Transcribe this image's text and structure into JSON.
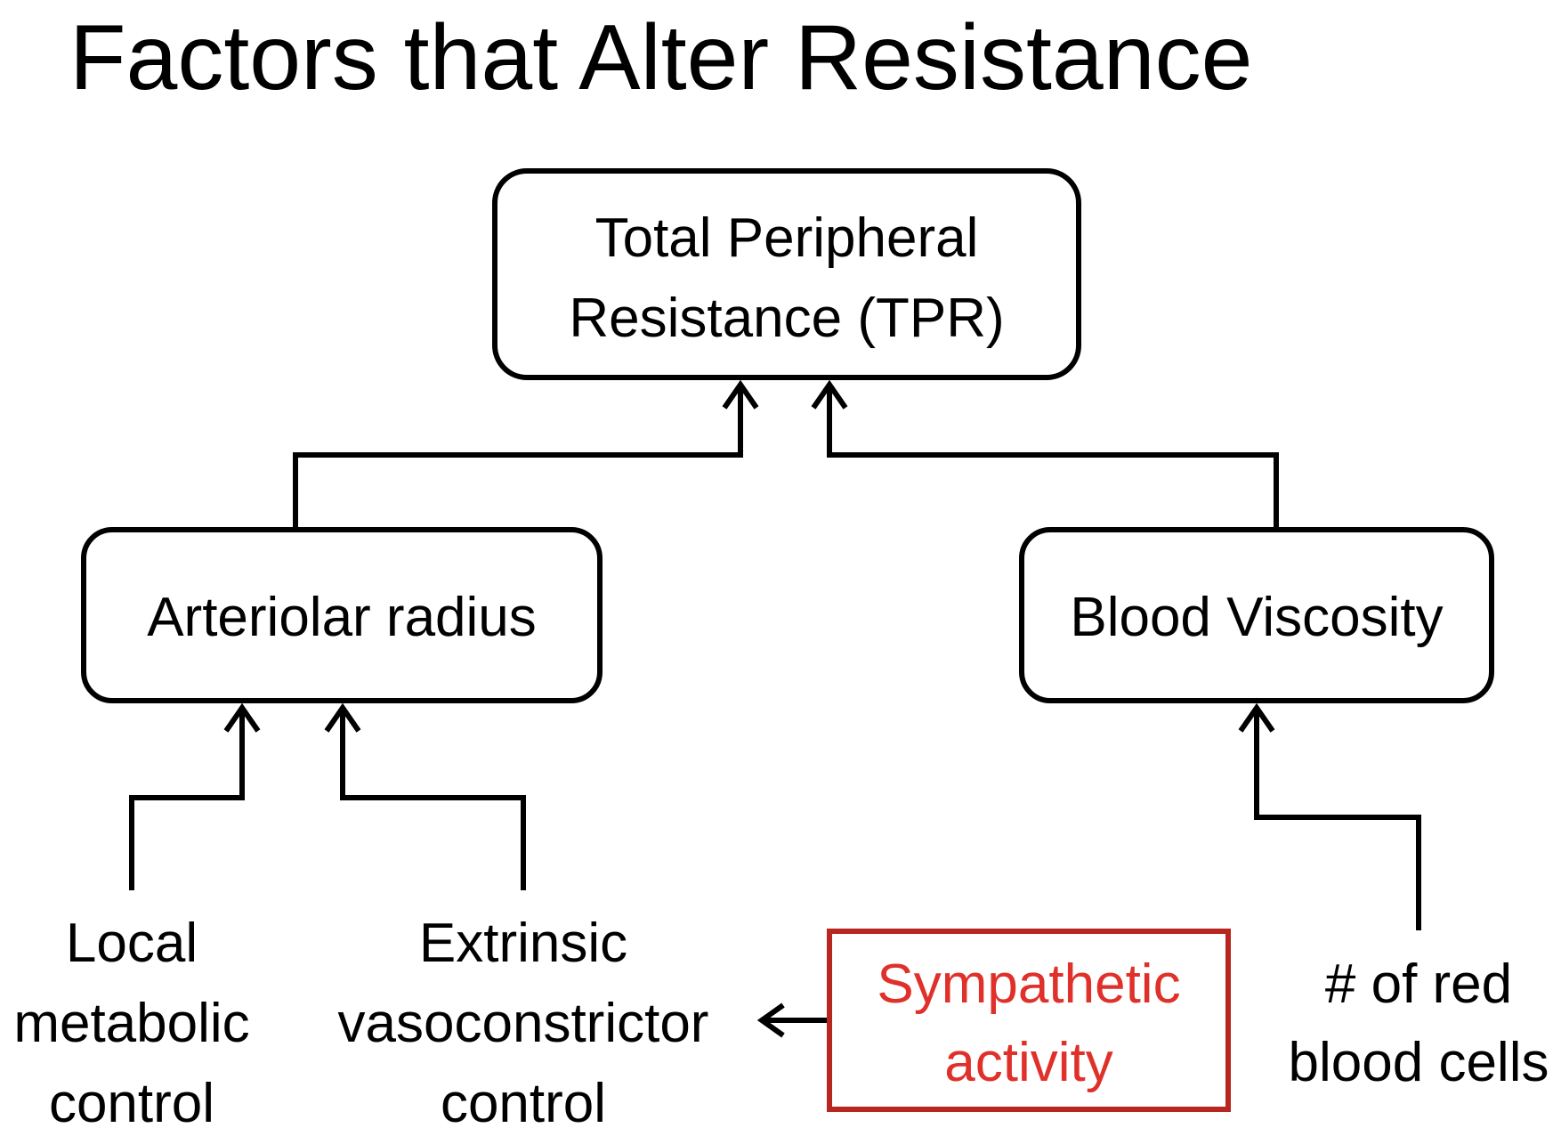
{
  "title": "Factors that Alter Resistance",
  "colors": {
    "accent": "#e0302a",
    "accent_border": "#b8261f"
  },
  "nodes": {
    "tpr": {
      "lines": [
        "Total Peripheral",
        "Resistance (TPR)"
      ]
    },
    "arteriolar_radius": {
      "label": "Arteriolar radius"
    },
    "blood_viscosity": {
      "label": "Blood Viscosity"
    },
    "local_metabolic": {
      "lines": [
        "Local",
        "metabolic",
        "control"
      ]
    },
    "extrinsic_vasoconstrictor": {
      "lines": [
        "Extrinsic",
        "vasoconstrictor",
        "control"
      ]
    },
    "sympathetic_activity": {
      "lines": [
        "Sympathetic",
        "activity"
      ]
    },
    "red_blood_cells": {
      "lines": [
        "# of red",
        "blood cells"
      ]
    }
  }
}
